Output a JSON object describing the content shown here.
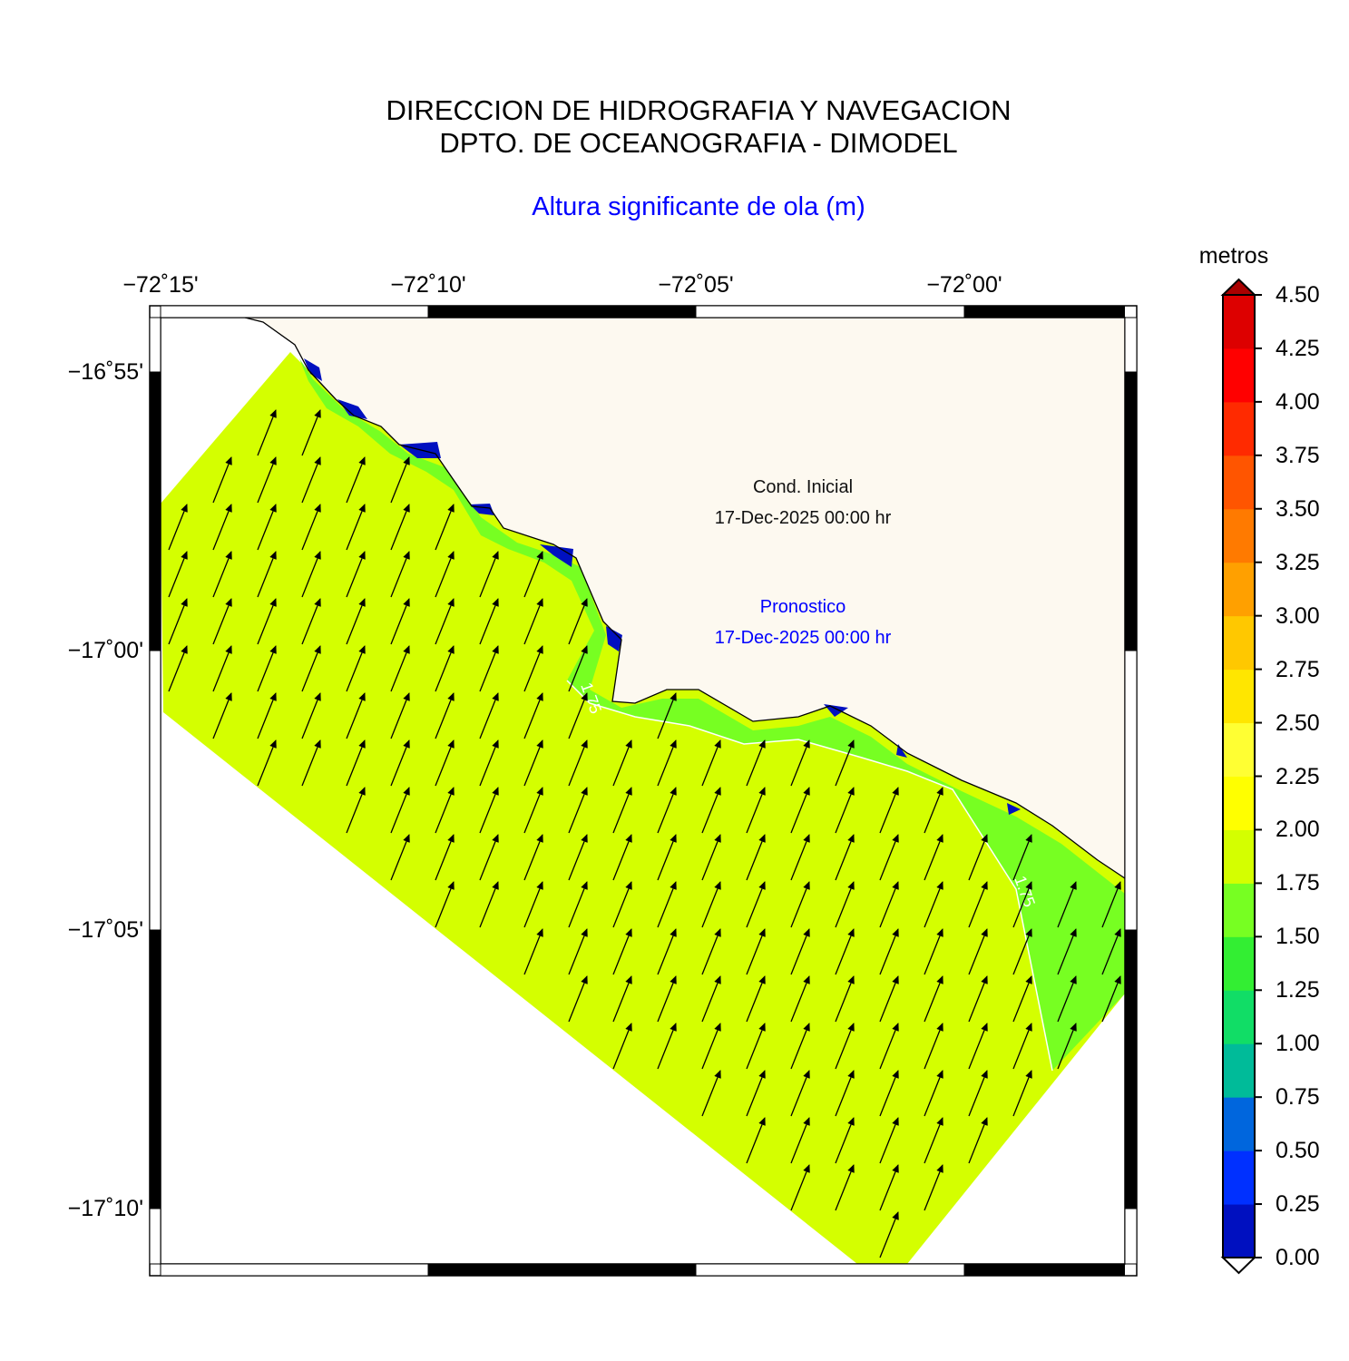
{
  "header": {
    "line1": "DIRECCION DE HIDROGRAFIA Y NAVEGACION",
    "line2": "DPTO. DE OCEANOGRAFIA - DIMODEL",
    "subtitle": "Altura significante de ola (m)"
  },
  "axes": {
    "lon_labels": [
      "−72˚15'",
      "−72˚10'",
      "−72˚05'",
      "−72˚00'"
    ],
    "lat_labels": [
      "−16˚55'",
      "−17˚00'",
      "−17˚05'",
      "−17˚10'"
    ]
  },
  "colorbar": {
    "title": "metros",
    "levels": [
      "4.50",
      "4.25",
      "4.00",
      "3.75",
      "3.50",
      "3.25",
      "3.00",
      "2.75",
      "2.50",
      "2.25",
      "2.00",
      "1.75",
      "1.50",
      "1.25",
      "1.00",
      "0.75",
      "0.50",
      "0.25",
      "0.00"
    ],
    "colors": [
      "#0010c0",
      "#0030ff",
      "#0066dd",
      "#00bb99",
      "#11dd66",
      "#33ee33",
      "#77ff22",
      "#d4ff00",
      "#ffff00",
      "#ffff33",
      "#ffe600",
      "#ffc800",
      "#ffa000",
      "#ff7a00",
      "#ff5500",
      "#ff2a00",
      "#ff0000",
      "#dd0000",
      "#aa0000"
    ]
  },
  "annotations": {
    "initial_label": "Cond. Inicial",
    "initial_date": "17-Dec-2025 00:00 hr",
    "forecast_label": "Pronostico",
    "forecast_date": "17-Dec-2025 00:00 hr",
    "contour_label": "1.75"
  },
  "map_colors": {
    "land": "#fdf9f0",
    "sea_main": "#d4ff00",
    "sea_nearshore": "#77ff22",
    "shallow": "#0010c0",
    "arrows": "#000000"
  }
}
